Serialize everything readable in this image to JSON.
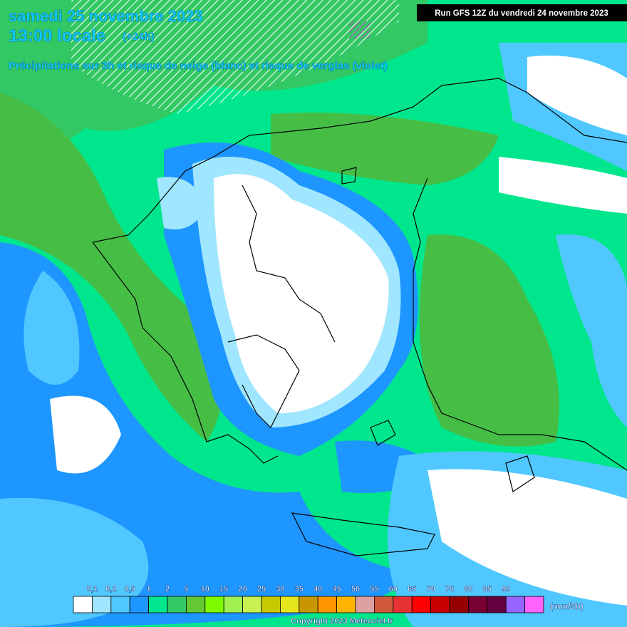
{
  "header": {
    "date": "samedi 25 novembre 2023",
    "time": "13:00 locale",
    "lead": "(+24h)",
    "subtitle": "Précipitations sur 3h et risque de neige (blanc) et risque de verglas (violet)",
    "run": "Run GFS 12Z du vendredi 24 novembre 2023"
  },
  "legend": {
    "labels": [
      "0,1",
      "0,2",
      "0,5",
      "1",
      "2",
      "5",
      "10",
      "15",
      "20",
      "25",
      "30",
      "35",
      "40",
      "45",
      "50",
      "55",
      "60",
      "65",
      "70",
      "75",
      "80",
      "85",
      "90"
    ],
    "colors": [
      "#ffffff",
      "#a0e6ff",
      "#50c8ff",
      "#1e96ff",
      "#00e68c",
      "#32c864",
      "#64c832",
      "#7dfa00",
      "#a0f050",
      "#c8f050",
      "#c8c800",
      "#e6e61e",
      "#c89600",
      "#ff9600",
      "#ffb400",
      "#dca0a0",
      "#d25a3c",
      "#e63232",
      "#ff0000",
      "#c80000",
      "#960000",
      "#780032",
      "#640040",
      "#9664ff",
      "#ff64ff"
    ],
    "unit": "(mm/3h)"
  },
  "footer": {
    "copyright": "Copyright 2023 Meteociel.fr"
  }
}
